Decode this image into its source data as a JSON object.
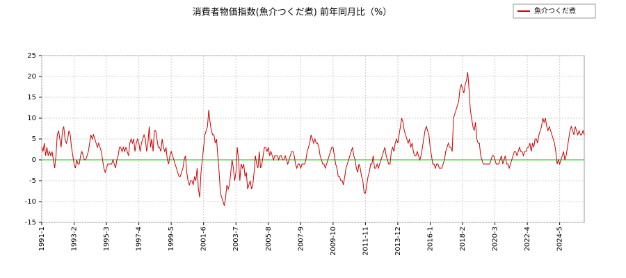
{
  "chart_data": {
    "type": "line",
    "title": "消費者物価指数(魚介つくだ煮) 前年同月比（%）",
    "categories": [
      "1991-1",
      null,
      null,
      null,
      null,
      null,
      null,
      null,
      null,
      null,
      null,
      null,
      null,
      null,
      null,
      null,
      null,
      null,
      null,
      null,
      null,
      null,
      null,
      null,
      null,
      "1993-2",
      null,
      null,
      null,
      null,
      null,
      null,
      null,
      null,
      null,
      null,
      null,
      null,
      null,
      null,
      null,
      null,
      null,
      null,
      null,
      null,
      null,
      null,
      null,
      null,
      "1995-3",
      null,
      null,
      null,
      null,
      null,
      null,
      null,
      null,
      null,
      null,
      null,
      null,
      null,
      null,
      null,
      null,
      null,
      null,
      null,
      null,
      null,
      null,
      null,
      null,
      "1997-4",
      null,
      null,
      null,
      null,
      null,
      null,
      null,
      null,
      null,
      null,
      null,
      null,
      null,
      null,
      null,
      null,
      null,
      null,
      null,
      null,
      null,
      null,
      null,
      null,
      "1999-5",
      null,
      null,
      null,
      null,
      null,
      null,
      null,
      null,
      null,
      null,
      null,
      null,
      null,
      null,
      null,
      null,
      null,
      null,
      null,
      null,
      null,
      null,
      null,
      null,
      "2001-6",
      null,
      null,
      null,
      null,
      null,
      null,
      null,
      null,
      null,
      null,
      null,
      null,
      null,
      null,
      null,
      null,
      null,
      null,
      null,
      null,
      null,
      null,
      null,
      null,
      "2003-7",
      null,
      null,
      null,
      null,
      null,
      null,
      null,
      null,
      null,
      null,
      null,
      null,
      null,
      null,
      null,
      null,
      null,
      null,
      null,
      null,
      null,
      null,
      null,
      null,
      "2005-8",
      null,
      null,
      null,
      null,
      null,
      null,
      null,
      null,
      null,
      null,
      null,
      null,
      null,
      null,
      null,
      null,
      null,
      null,
      null,
      null,
      null,
      null,
      null,
      null,
      "2007-9",
      null,
      null,
      null,
      null,
      null,
      null,
      null,
      null,
      null,
      null,
      null,
      null,
      null,
      null,
      null,
      null,
      null,
      null,
      null,
      null,
      null,
      null,
      null,
      null,
      "2009-10",
      null,
      null,
      null,
      null,
      null,
      null,
      null,
      null,
      null,
      null,
      null,
      null,
      null,
      null,
      null,
      null,
      null,
      null,
      null,
      null,
      null,
      null,
      null,
      null,
      "2011-11",
      null,
      null,
      null,
      null,
      null,
      null,
      null,
      null,
      null,
      null,
      null,
      null,
      null,
      null,
      null,
      null,
      null,
      null,
      null,
      null,
      null,
      null,
      null,
      null,
      "2013-12",
      null,
      null,
      null,
      null,
      null,
      null,
      null,
      null,
      null,
      null,
      null,
      null,
      null,
      null,
      null,
      null,
      null,
      null,
      null,
      null,
      null,
      null,
      null,
      null,
      "2016-1",
      null,
      null,
      null,
      null,
      null,
      null,
      null,
      null,
      null,
      null,
      null,
      null,
      null,
      null,
      null,
      null,
      null,
      null,
      null,
      null,
      null,
      null,
      null,
      null,
      "2018-2",
      null,
      null,
      null,
      null,
      null,
      null,
      null,
      null,
      null,
      null,
      null,
      null,
      null,
      null,
      null,
      null,
      null,
      null,
      null,
      null,
      null,
      null,
      null,
      null,
      "2020-3",
      null,
      null,
      null,
      null,
      null,
      null,
      null,
      null,
      null,
      null,
      null,
      null,
      null,
      null,
      null,
      null,
      null,
      null,
      null,
      null,
      null,
      null,
      null,
      null,
      "2022-4",
      null,
      null,
      null,
      null,
      null,
      null,
      null,
      null,
      null,
      null,
      null,
      null,
      null,
      null,
      null,
      null,
      null,
      null,
      null,
      null,
      null,
      null,
      null,
      null,
      "2024-5",
      null,
      null,
      null,
      null,
      null,
      null,
      null,
      null,
      null,
      null,
      null,
      null,
      null,
      null,
      null,
      null,
      null,
      null,
      null
    ],
    "series": [
      {
        "name": "魚介つくだ煮",
        "color": "#cc0000",
        "values": [
          3,
          2,
          4,
          1,
          3,
          1,
          2,
          1,
          2,
          0,
          -2,
          1,
          6,
          7,
          5,
          3,
          7,
          8,
          5,
          4,
          5,
          7,
          6,
          3,
          1,
          -1,
          -2,
          0,
          -1,
          -1,
          1,
          2,
          1,
          0,
          0,
          1,
          2,
          4,
          6,
          5,
          6,
          5,
          4,
          3,
          4,
          3,
          2,
          0,
          -2,
          -3,
          -2,
          -1,
          -1,
          -1,
          -1,
          0,
          -1,
          -2,
          0,
          1,
          3,
          3,
          2,
          3,
          2,
          3,
          2,
          1,
          4,
          5,
          4,
          5,
          2,
          4,
          5,
          4,
          2,
          4,
          5,
          6,
          5,
          2,
          4,
          8,
          3,
          5,
          2,
          7,
          7,
          5,
          3,
          3,
          2,
          5,
          3,
          2,
          3,
          0,
          -1,
          1,
          2,
          1,
          0,
          -1,
          -2,
          -3,
          -4,
          -4,
          -3,
          -2,
          0,
          1,
          -3,
          -5,
          -6,
          -5,
          -5,
          -6,
          -4,
          -5,
          -2,
          -7,
          -9,
          -3,
          0,
          3,
          6,
          7,
          8,
          12,
          9,
          7,
          6,
          6,
          4,
          5,
          1,
          -3,
          -8,
          -9,
          -10,
          -11,
          -9,
          -6,
          -7,
          -6,
          -3,
          0,
          -2,
          -5,
          -3,
          3,
          0,
          -5,
          -1,
          -2,
          -1,
          -4,
          -3,
          -7,
          -6,
          -5,
          -7,
          -6,
          -3,
          1,
          -1,
          -2,
          2,
          -2,
          -1,
          1,
          3,
          3,
          2,
          3,
          1,
          2,
          1,
          0,
          1,
          1,
          1,
          0,
          1,
          1,
          0,
          0,
          1,
          0,
          -1,
          0,
          1,
          2,
          2,
          1,
          -1,
          -2,
          -1,
          -1,
          -2,
          -1,
          -1,
          -1,
          0,
          2,
          3,
          4,
          6,
          5,
          4,
          5,
          4,
          4,
          3,
          1,
          0,
          -1,
          -1,
          -2,
          -1,
          0,
          1,
          2,
          3,
          3,
          1,
          -1,
          -2,
          -4,
          -4,
          -5,
          -5,
          -6,
          -4,
          -2,
          -1,
          0,
          1,
          2,
          3,
          1,
          0,
          -2,
          -3,
          -1,
          -2,
          -4,
          -5,
          -8,
          -8,
          -6,
          -4,
          -3,
          -1,
          -1,
          1,
          -2,
          -2,
          -1,
          -2,
          -1,
          0,
          1,
          2,
          3,
          1,
          0,
          -1,
          -1,
          2,
          3,
          2,
          4,
          5,
          4,
          6,
          8,
          10,
          9,
          7,
          6,
          5,
          4,
          5,
          3,
          4,
          2,
          1,
          1,
          2,
          1,
          0,
          1,
          3,
          5,
          7,
          8,
          7,
          6,
          3,
          1,
          -1,
          -1,
          -2,
          -1,
          -1,
          -2,
          -2,
          -2,
          -1,
          0,
          2,
          3,
          4,
          3,
          3,
          2,
          10,
          11,
          12,
          13,
          14,
          17,
          18,
          17,
          16,
          18,
          19,
          21,
          17,
          12,
          10,
          8,
          7,
          9,
          5,
          4,
          4,
          1,
          0,
          -1,
          -1,
          -1,
          -1,
          -1,
          -1,
          0,
          1,
          1,
          0,
          -1,
          -1,
          -1,
          0,
          1,
          -1,
          0,
          1,
          -1,
          -1,
          -2,
          -1,
          0,
          1,
          2,
          2,
          1,
          2,
          3,
          2,
          2,
          1,
          2,
          2,
          3,
          3,
          4,
          2,
          4,
          3,
          5,
          5,
          4,
          6,
          7,
          8,
          10,
          9,
          10,
          8,
          7,
          8,
          7,
          6,
          5,
          4,
          2,
          -1,
          0,
          -1,
          0,
          1,
          2,
          0,
          1,
          3,
          5,
          7,
          8,
          7,
          6,
          8,
          7,
          6,
          7,
          6,
          6,
          7,
          6
        ]
      }
    ],
    "ylim": [
      -15,
      25
    ],
    "yticks": [
      -15,
      -10,
      -5,
      0,
      5,
      10,
      15,
      20,
      25
    ],
    "grid": true,
    "legend": "top-right",
    "zero_line_color": "#00cc00"
  }
}
